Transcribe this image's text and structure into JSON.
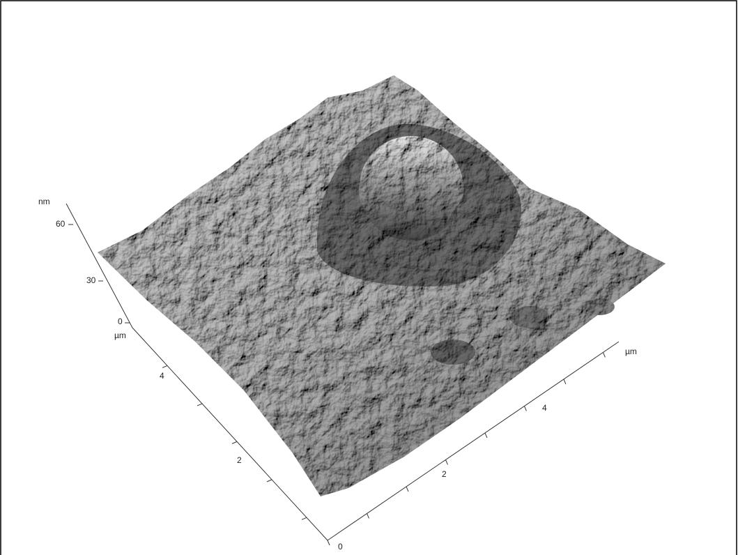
{
  "z_axis": {
    "unit": "nm",
    "ticks": [
      "60",
      "30",
      "0"
    ]
  },
  "y_axis": {
    "unit": "µm",
    "ticks": [
      "4",
      "2"
    ]
  },
  "x_axis": {
    "unit": "µm",
    "ticks": [
      "0",
      "2",
      "4"
    ]
  }
}
